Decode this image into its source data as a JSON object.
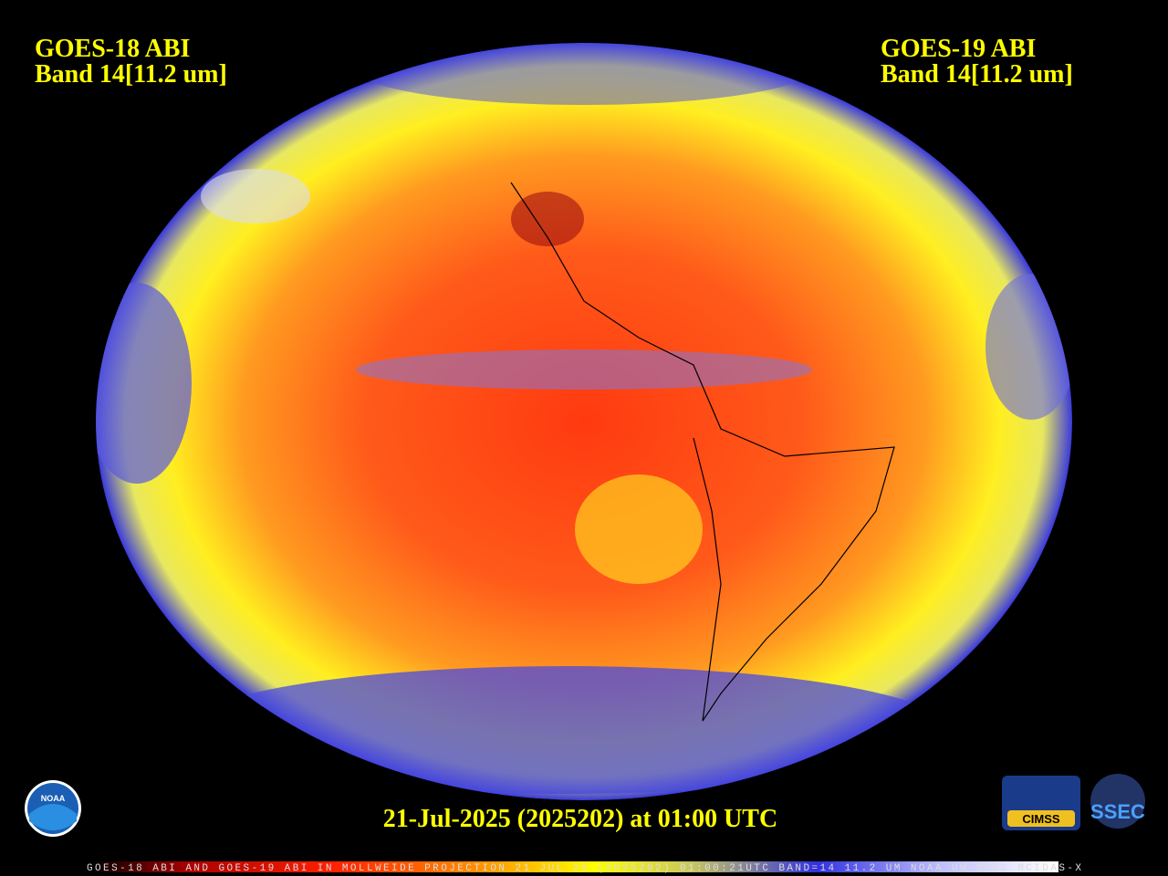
{
  "header": {
    "left": {
      "line1": "GOES-18 ABI",
      "line2": "Band 14[11.2 um]"
    },
    "right": {
      "line1": "GOES-19 ABI",
      "line2": "Band 14[11.2 um]"
    }
  },
  "timestamp": "21-Jul-2025 (2025202) at 01:00 UTC",
  "caption": "GOES-18 ABI AND GOES-19 ABI IN MOLLWEIDE PROJECTION 21 JUL 25 (2025202) 01:00:21UTC BAND=14 11.2 UM NOAA UW-SSEC MCIDAS-X",
  "logos": {
    "noaa": "NOAA",
    "cimss": "CIMSS",
    "ssec": "SSEC"
  }
}
